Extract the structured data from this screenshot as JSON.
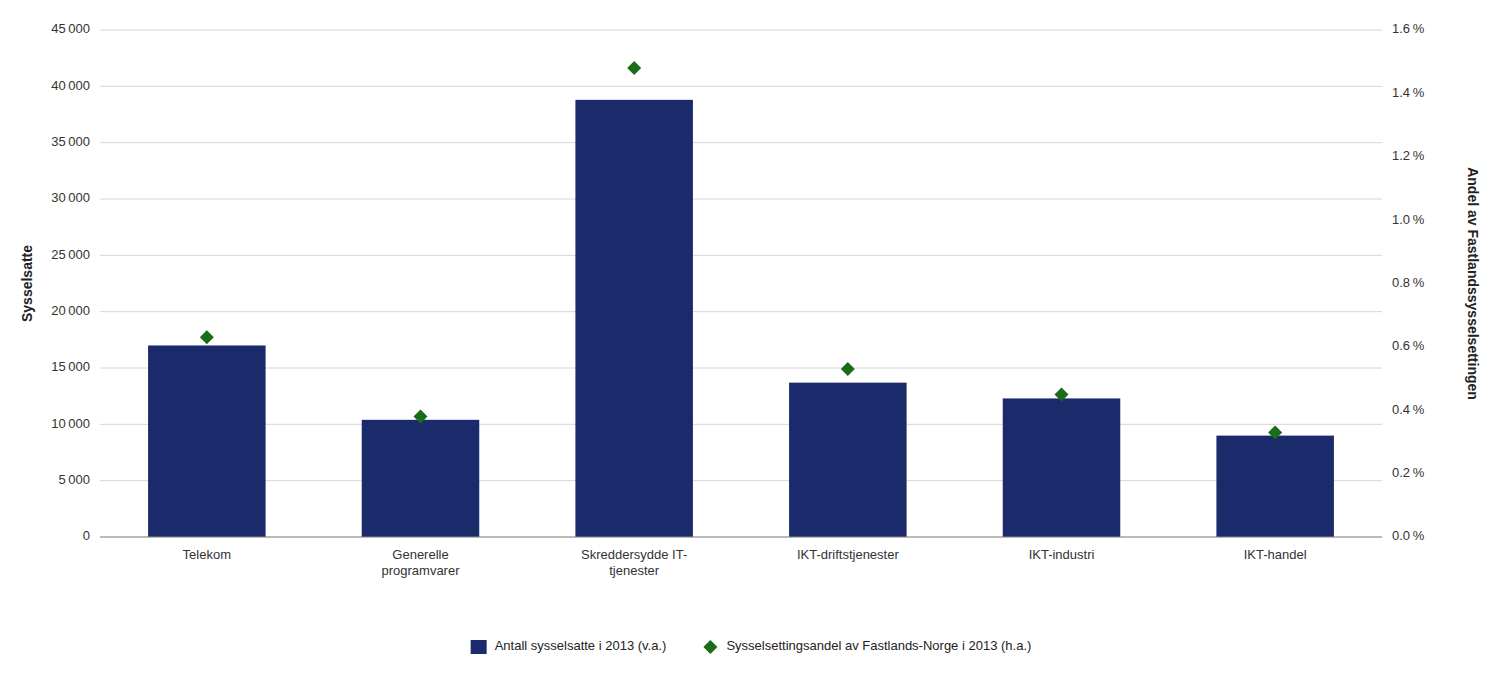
{
  "chart_data": {
    "type": "bar",
    "categories": [
      "Telekom",
      "Generelle\nprogramvarer",
      "Skreddersydde IT-\ntjenester",
      "IKT-driftstjenester",
      "IKT-industri",
      "IKT-handel"
    ],
    "series": [
      {
        "name": "Antall sysselsatte i 2013 (v.a.)",
        "type": "bar",
        "color": "#1B2A6B",
        "values": [
          17000,
          10400,
          38800,
          13700,
          12300,
          9000
        ]
      },
      {
        "name": "Sysselsettingsandel av Fastlands-Norge i 2013 (h.a.)",
        "type": "scatter",
        "axis": "y2",
        "color": "#1A6B1A",
        "marker": "diamond",
        "values": [
          0.0063,
          0.0038,
          0.0148,
          0.0053,
          0.0045,
          0.0033
        ]
      }
    ],
    "ylabel": "Sysselsatte",
    "y2label": "Andel av Fastlandssysselsettingen",
    "ylim": [
      0,
      45000
    ],
    "yticks": [
      0,
      {
        "value": 5000,
        "label": "5 000"
      },
      {
        "value": 10000,
        "label": "10 000"
      },
      {
        "value": 15000,
        "label": "15 000"
      },
      {
        "value": 20000,
        "label": "20 000"
      },
      {
        "value": 25000,
        "label": "25 000"
      },
      {
        "value": 30000,
        "label": "30 000"
      },
      {
        "value": 35000,
        "label": "35 000"
      },
      {
        "value": 40000,
        "label": "40 000"
      },
      {
        "value": 45000,
        "label": "45 000"
      }
    ],
    "y2lim": [
      0,
      0.016
    ],
    "y2ticks": [
      {
        "value": 0.0,
        "label": "0.0 %"
      },
      {
        "value": 0.002,
        "label": "0.2 %"
      },
      {
        "value": 0.004,
        "label": "0.4 %"
      },
      {
        "value": 0.006,
        "label": "0.6 %"
      },
      {
        "value": 0.008,
        "label": "0.8 %"
      },
      {
        "value": 0.01,
        "label": "1.0 %"
      },
      {
        "value": 0.012,
        "label": "1.2 %"
      },
      {
        "value": 0.014,
        "label": "1.4 %"
      },
      {
        "value": 0.016,
        "label": "1.6 %"
      }
    ],
    "grid": true,
    "legend": "bottom"
  }
}
